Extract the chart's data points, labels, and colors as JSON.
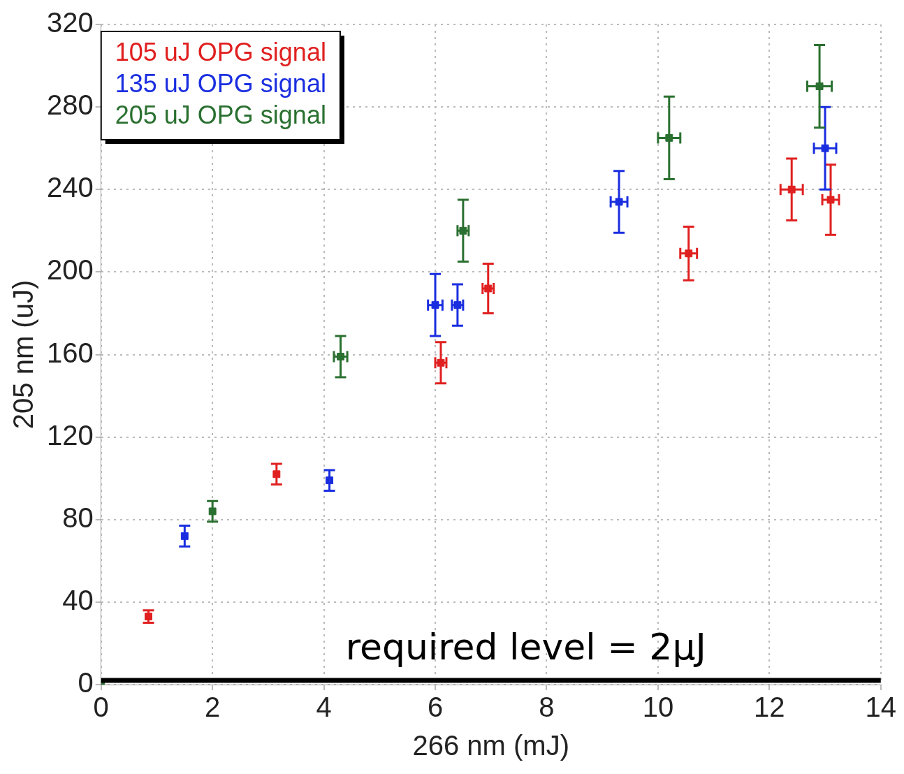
{
  "chart_data": {
    "type": "scatter",
    "xlabel": "266 nm (mJ)",
    "ylabel": "205 nm (uJ)",
    "xlim": [
      0,
      14
    ],
    "ylim": [
      0,
      320
    ],
    "xticks": [
      0,
      2,
      4,
      6,
      8,
      10,
      12,
      14
    ],
    "yticks": [
      0,
      40,
      80,
      120,
      160,
      200,
      240,
      280,
      320
    ],
    "grid": true,
    "legend": "top left",
    "ref_lines": [
      {
        "axis": "y",
        "value": 2,
        "label": "required level = 2μJ",
        "color": "#000000"
      }
    ],
    "series": [
      {
        "name": "105 uJ OPG signal",
        "color": "#e02020",
        "x": [
          0.85,
          3.15,
          6.1,
          6.95,
          10.55,
          12.4,
          13.1
        ],
        "values": [
          33,
          102,
          156,
          192,
          209,
          240,
          235
        ],
        "errors": [
          3,
          5,
          10,
          12,
          13,
          15,
          17
        ],
        "xerrors": [
          null,
          null,
          0.1,
          0.1,
          0.15,
          0.2,
          0.15
        ]
      },
      {
        "name": "135 uJ OPG signal",
        "color": "#1a2ee0",
        "x": [
          1.5,
          4.1,
          6.0,
          6.4,
          9.3,
          13.0
        ],
        "values": [
          72,
          99,
          184,
          184,
          234,
          260
        ],
        "errors": [
          5,
          5,
          15,
          10,
          15,
          20
        ],
        "xerrors": [
          null,
          null,
          0.13,
          0.1,
          0.15,
          0.2
        ]
      },
      {
        "name": "205 uJ OPG signal",
        "color": "#2a7030",
        "x": [
          0,
          2.0,
          4.3,
          6.5,
          10.2,
          12.9
        ],
        "values": [
          0,
          84,
          159,
          220,
          265,
          290
        ],
        "errors": [
          null,
          5,
          10,
          15,
          20,
          20
        ],
        "xerrors": [
          null,
          null,
          0.12,
          0.1,
          0.2,
          0.22
        ]
      }
    ]
  }
}
